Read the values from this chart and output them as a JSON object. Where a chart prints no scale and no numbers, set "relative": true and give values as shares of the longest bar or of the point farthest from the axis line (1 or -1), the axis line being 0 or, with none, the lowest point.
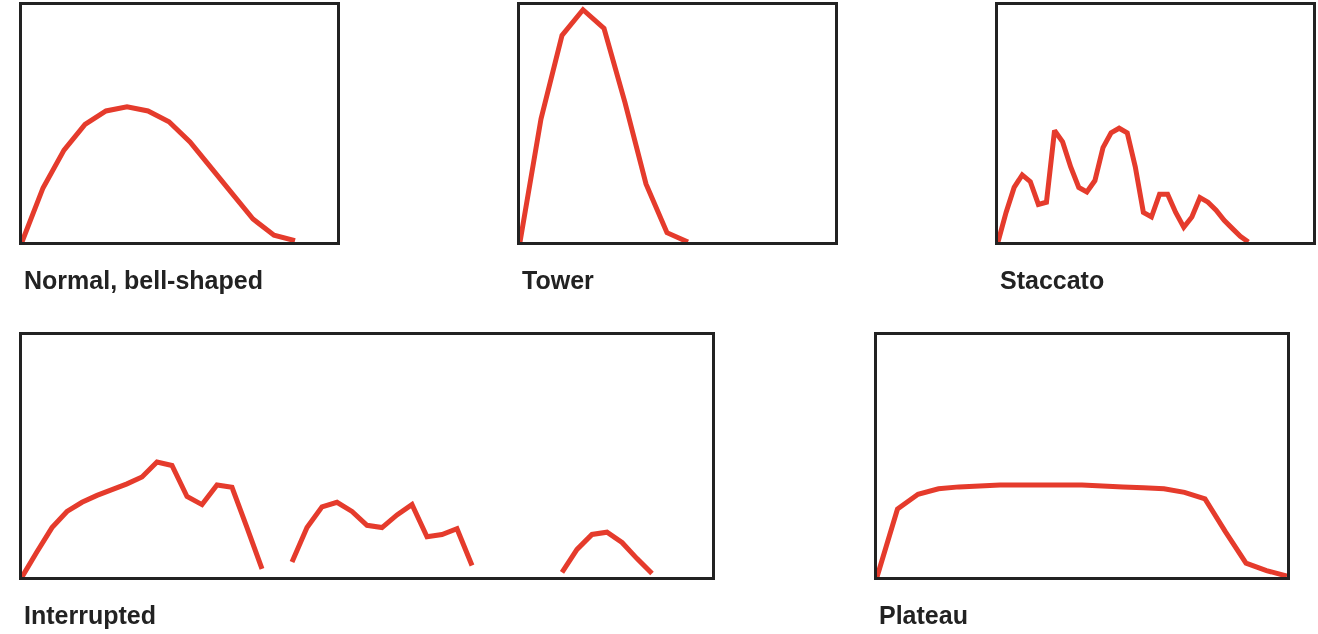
{
  "chart_data": [
    {
      "type": "line",
      "title": "Normal, bell-shaped",
      "relative": true,
      "color": "#e53b2c",
      "marker": "none",
      "line_style": "solid",
      "categories": [
        null,
        null,
        null,
        null,
        null,
        null,
        null,
        null,
        null,
        null,
        null,
        null,
        null,
        null,
        null,
        null
      ],
      "values": [
        0,
        0.4,
        0.68,
        0.87,
        0.97,
        1,
        0.97,
        0.89,
        0.74,
        0.55,
        0.36,
        0.17,
        0.05,
        0.01,
        null,
        null
      ]
    },
    {
      "type": "line",
      "title": "Tower",
      "relative": true,
      "color": "#e53b2c",
      "marker": "none",
      "line_style": "solid",
      "categories": [
        null,
        null,
        null,
        null,
        null,
        null,
        null,
        null,
        null,
        null,
        null,
        null,
        null,
        null,
        null,
        null
      ],
      "values": [
        0,
        0.53,
        0.89,
        1,
        0.92,
        0.6,
        0.25,
        0.04,
        0,
        null,
        null,
        null,
        null,
        null,
        null,
        null
      ]
    },
    {
      "type": "line",
      "title": "Staccato",
      "relative": true,
      "color": "#e53b2c",
      "marker": "none",
      "line_style": "solid",
      "categories": [
        null,
        null,
        null,
        null,
        null,
        null,
        null,
        null,
        null,
        null,
        null,
        null,
        null,
        null,
        null,
        null,
        null,
        null,
        null,
        null,
        null,
        null,
        null,
        null,
        null,
        null,
        null,
        null,
        null,
        null,
        null,
        null,
        null,
        null,
        null,
        null,
        null,
        null,
        null,
        null
      ],
      "values": [
        0,
        0.26,
        0.48,
        0.59,
        0.53,
        0.33,
        0.35,
        0.98,
        0.88,
        0.66,
        0.48,
        0.44,
        0.54,
        0.83,
        0.96,
        1,
        0.96,
        0.66,
        0.26,
        0.22,
        0.42,
        0.42,
        0.26,
        0.13,
        0.22,
        0.39,
        0.35,
        0.28,
        0.19,
        0.12,
        0.05,
        0,
        null,
        null,
        null,
        null,
        null,
        null,
        null,
        null
      ]
    },
    {
      "type": "line",
      "title": "Interrupted",
      "relative": true,
      "marker": "none",
      "line_style": "solid",
      "categories": [
        null,
        null,
        null,
        null,
        null,
        null,
        null,
        null,
        null,
        null,
        null,
        null,
        null,
        null,
        null,
        null,
        null,
        null,
        null,
        null,
        null,
        null,
        null,
        null,
        null,
        null,
        null,
        null,
        null,
        null,
        null,
        null,
        null,
        null,
        null,
        null,
        null,
        null,
        null,
        null,
        null,
        null,
        null,
        null,
        null,
        null,
        null
      ],
      "series": [
        {
          "color": "#e53b2c",
          "values": [
            0,
            0.22,
            0.43,
            0.57,
            0.65,
            0.71,
            0.76,
            0.81,
            0.87,
            1,
            0.97,
            0.7,
            0.63,
            0.8,
            0.78,
            0.43,
            0.07,
            null,
            null,
            null,
            null,
            null,
            null,
            null,
            null,
            null,
            null,
            null,
            null,
            null,
            null,
            null,
            null,
            null,
            null,
            null,
            null,
            null,
            null,
            null,
            null,
            null,
            null,
            null,
            null,
            null,
            null
          ]
        },
        {
          "color": "#e53b2c",
          "values": [
            null,
            null,
            null,
            null,
            null,
            null,
            null,
            null,
            null,
            null,
            null,
            null,
            null,
            null,
            null,
            null,
            null,
            null,
            0.13,
            0.43,
            0.61,
            0.65,
            0.57,
            0.45,
            0.43,
            0.54,
            0.63,
            0.35,
            0.37,
            0.42,
            0.1,
            null,
            null,
            null,
            null,
            null,
            null,
            null,
            null,
            null,
            null,
            null,
            null,
            null,
            null,
            null,
            null
          ]
        },
        {
          "color": "#e53b2c",
          "values": [
            null,
            null,
            null,
            null,
            null,
            null,
            null,
            null,
            null,
            null,
            null,
            null,
            null,
            null,
            null,
            null,
            null,
            null,
            null,
            null,
            null,
            null,
            null,
            null,
            null,
            null,
            null,
            null,
            null,
            null,
            null,
            null,
            null,
            null,
            null,
            null,
            0.04,
            0.24,
            0.37,
            0.39,
            0.3,
            0.16,
            0.03,
            null,
            null,
            null,
            null
          ]
        }
      ]
    },
    {
      "type": "line",
      "title": "Plateau",
      "relative": true,
      "color": "#e53b2c",
      "marker": "none",
      "line_style": "solid",
      "categories": [
        null,
        null,
        null,
        null,
        null,
        null,
        null,
        null,
        null,
        null,
        null,
        null,
        null,
        null,
        null,
        null,
        null,
        null,
        null,
        null,
        null
      ],
      "values": [
        0,
        0.74,
        0.9,
        0.96,
        0.98,
        0.99,
        1,
        1,
        1,
        1,
        1,
        0.99,
        0.98,
        0.97,
        0.96,
        0.92,
        0.85,
        0.49,
        0.15,
        0.07,
        0.01
      ]
    }
  ]
}
